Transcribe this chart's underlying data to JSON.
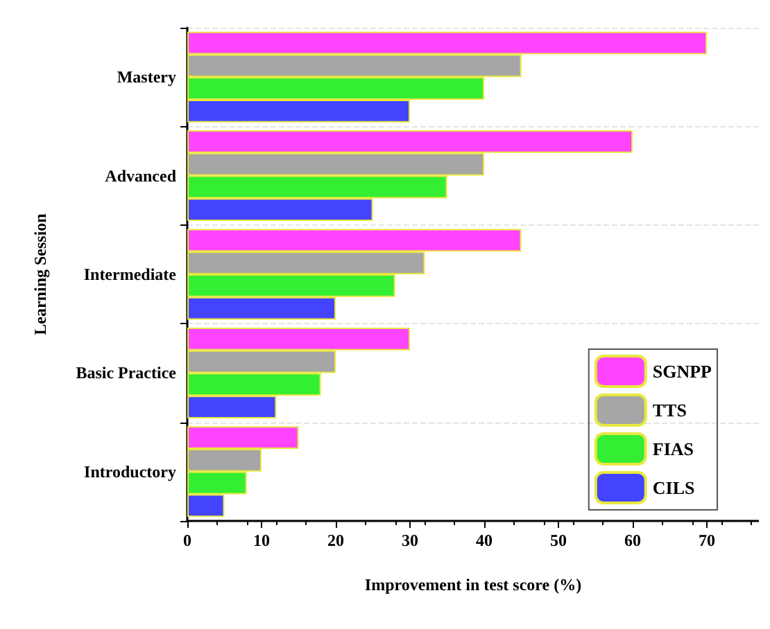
{
  "chart_data": {
    "type": "bar",
    "orientation": "horizontal",
    "xlabel": "Improvement in test score (%)",
    "ylabel": "Learning Session",
    "categories": [
      "Mastery",
      "Advanced",
      "Intermediate",
      "Basic Practice",
      "Introductory"
    ],
    "series": [
      {
        "name": "SGNPP",
        "color": "#ff44ff",
        "values": [
          70,
          60,
          45,
          30,
          15
        ]
      },
      {
        "name": "TTS",
        "color": "#a6a6a6",
        "values": [
          45,
          40,
          32,
          20,
          10
        ]
      },
      {
        "name": "FIAS",
        "color": "#33ee33",
        "values": [
          40,
          35,
          28,
          18,
          8
        ]
      },
      {
        "name": "CILS",
        "color": "#4444ff",
        "values": [
          30,
          25,
          20,
          12,
          5
        ]
      }
    ],
    "xlim": [
      0,
      77
    ],
    "xticks": [
      0,
      10,
      20,
      30,
      40,
      50,
      60,
      70
    ],
    "grid": "y",
    "legend": "bottom right"
  }
}
